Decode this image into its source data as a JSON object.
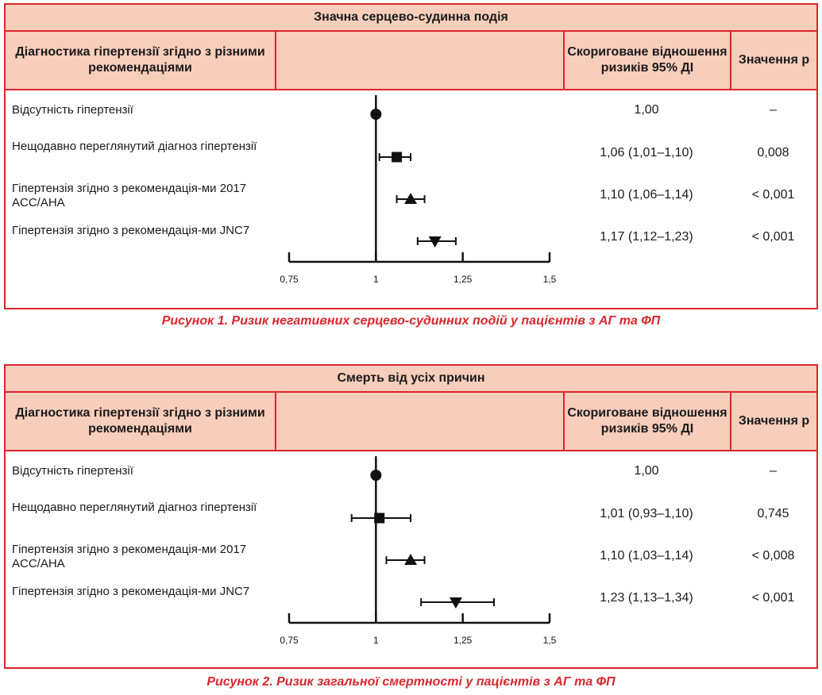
{
  "chart_data": [
    {
      "type": "forest",
      "title": "Значна серцево-судинна подія",
      "headers": {
        "diagnosis": "Діагностика гіпертензії згідно з різними рекомендаціями",
        "hr": "Скориговане відношення ризиків 95% ДІ",
        "p": "Значення р"
      },
      "xlim": [
        0.75,
        1.5
      ],
      "ticks": [
        0.75,
        1,
        1.25,
        1.5
      ],
      "tick_labels": [
        "0,75",
        "1",
        "1,25",
        "1,5"
      ],
      "reference": 1,
      "rows": [
        {
          "label": "Відсутність гіпертензії",
          "marker": "circle",
          "hr": 1.0,
          "lo": null,
          "hi": null,
          "hr_text": "1,00",
          "p_text": "–"
        },
        {
          "label": "Нещодавно переглянутий діагноз гіпертензії",
          "marker": "square",
          "hr": 1.06,
          "lo": 1.01,
          "hi": 1.1,
          "hr_text": "1,06 (1,01–1,10)",
          "p_text": "0,008"
        },
        {
          "label": "Гіпертензія згідно з рекомендація-ми 2017 ACC/AHA",
          "marker": "triangle-up",
          "hr": 1.1,
          "lo": 1.06,
          "hi": 1.14,
          "hr_text": "1,10 (1,06–1,14)",
          "p_text": "< 0,001"
        },
        {
          "label": "Гіпертензія згідно з рекомендація-ми JNC7",
          "marker": "triangle-down",
          "hr": 1.17,
          "lo": 1.12,
          "hi": 1.23,
          "hr_text": "1,17 (1,12–1,23)",
          "p_text": "< 0,001"
        }
      ],
      "caption": "Рисунок 1. Ризик негативних серцево-судинних подій у пацієнтів з АГ та ФП"
    },
    {
      "type": "forest",
      "title": "Смерть від усіх причин",
      "headers": {
        "diagnosis": "Діагностика гіпертензії згідно з різними рекомендаціями",
        "hr": "Скориговане відношення ризиків 95% ДІ",
        "p": "Значення р"
      },
      "xlim": [
        0.75,
        1.5
      ],
      "ticks": [
        0.75,
        1,
        1.25,
        1.5
      ],
      "tick_labels": [
        "0,75",
        "1",
        "1,25",
        "1,5"
      ],
      "reference": 1,
      "rows": [
        {
          "label": "Відсутність гіпертензії",
          "marker": "circle",
          "hr": 1.0,
          "lo": null,
          "hi": null,
          "hr_text": "1,00",
          "p_text": "–"
        },
        {
          "label": "Нещодавно переглянутий діагноз гіпертензії",
          "marker": "square",
          "hr": 1.01,
          "lo": 0.93,
          "hi": 1.1,
          "hr_text": "1,01 (0,93–1,10)",
          "p_text": "0,745"
        },
        {
          "label": "Гіпертензія згідно з рекомендація-ми 2017 ACC/AHA",
          "marker": "triangle-up",
          "hr": 1.1,
          "lo": 1.03,
          "hi": 1.14,
          "hr_text": "1,10 (1,03–1,14)",
          "p_text": "< 0,008"
        },
        {
          "label": "Гіпертензія згідно з рекомендація-ми JNC7",
          "marker": "triangle-down",
          "hr": 1.23,
          "lo": 1.13,
          "hi": 1.34,
          "hr_text": "1,23 (1,13–1,34)",
          "p_text": "< 0,001"
        }
      ],
      "caption": "Рисунок 2. Ризик загальної смертності у пацієнтів з АГ та ФП"
    }
  ]
}
